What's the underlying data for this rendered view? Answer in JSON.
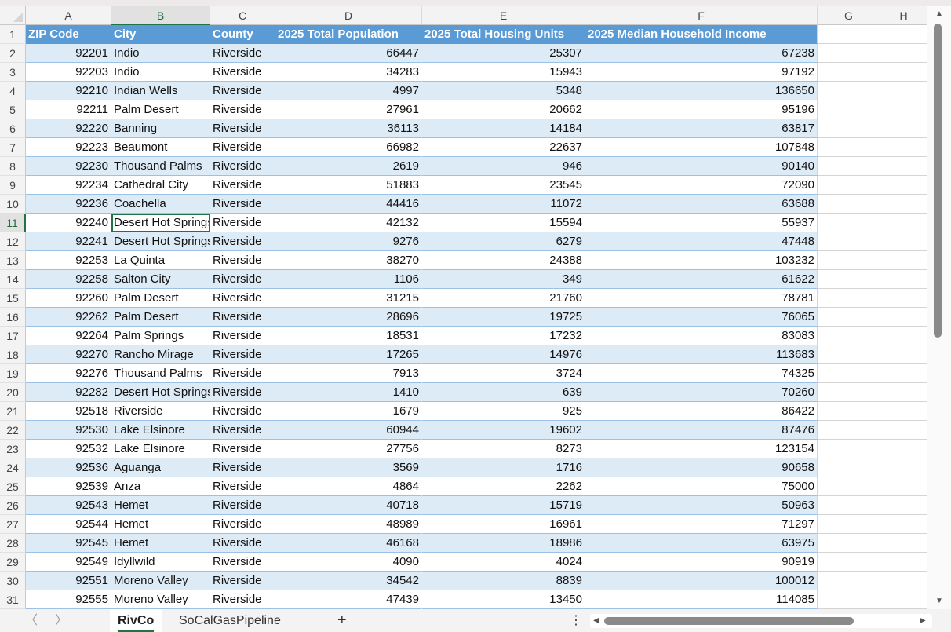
{
  "columns": [
    "A",
    "B",
    "C",
    "D",
    "E",
    "F",
    "G",
    "H"
  ],
  "selected_column": "B",
  "selected_row": 11,
  "headers": [
    "ZIP Code",
    "City",
    "County",
    "2025 Total Population",
    "2025 Total Housing Units",
    "2025 Median Household Income"
  ],
  "rows": [
    [
      "92201",
      "Indio",
      "Riverside",
      "66447",
      "25307",
      "67238"
    ],
    [
      "92203",
      "Indio",
      "Riverside",
      "34283",
      "15943",
      "97192"
    ],
    [
      "92210",
      "Indian Wells",
      "Riverside",
      "4997",
      "5348",
      "136650"
    ],
    [
      "92211",
      "Palm Desert",
      "Riverside",
      "27961",
      "20662",
      "95196"
    ],
    [
      "92220",
      "Banning",
      "Riverside",
      "36113",
      "14184",
      "63817"
    ],
    [
      "92223",
      "Beaumont",
      "Riverside",
      "66982",
      "22637",
      "107848"
    ],
    [
      "92230",
      "Thousand Palms",
      "Riverside",
      "2619",
      "946",
      "90140"
    ],
    [
      "92234",
      "Cathedral City",
      "Riverside",
      "51883",
      "23545",
      "72090"
    ],
    [
      "92236",
      "Coachella",
      "Riverside",
      "44416",
      "11072",
      "63688"
    ],
    [
      "92240",
      "Desert Hot Springs",
      "Riverside",
      "42132",
      "15594",
      "55937"
    ],
    [
      "92241",
      "Desert Hot Springs",
      "Riverside",
      "9276",
      "6279",
      "47448"
    ],
    [
      "92253",
      "La Quinta",
      "Riverside",
      "38270",
      "24388",
      "103232"
    ],
    [
      "92258",
      "Salton City",
      "Riverside",
      "1106",
      "349",
      "61622"
    ],
    [
      "92260",
      "Palm Desert",
      "Riverside",
      "31215",
      "21760",
      "78781"
    ],
    [
      "92262",
      "Palm Desert",
      "Riverside",
      "28696",
      "19725",
      "76065"
    ],
    [
      "92264",
      "Palm Springs",
      "Riverside",
      "18531",
      "17232",
      "83083"
    ],
    [
      "92270",
      "Rancho Mirage",
      "Riverside",
      "17265",
      "14976",
      "113683"
    ],
    [
      "92276",
      "Thousand Palms",
      "Riverside",
      "7913",
      "3724",
      "74325"
    ],
    [
      "92282",
      "Desert Hot Springs",
      "Riverside",
      "1410",
      "639",
      "70260"
    ],
    [
      "92518",
      "Riverside",
      "Riverside",
      "1679",
      "925",
      "86422"
    ],
    [
      "92530",
      "Lake Elsinore",
      "Riverside",
      "60944",
      "19602",
      "87476"
    ],
    [
      "92532",
      "Lake Elsinore",
      "Riverside",
      "27756",
      "8273",
      "123154"
    ],
    [
      "92536",
      "Aguanga",
      "Riverside",
      "3569",
      "1716",
      "90658"
    ],
    [
      "92539",
      "Anza",
      "Riverside",
      "4864",
      "2262",
      "75000"
    ],
    [
      "92543",
      "Hemet",
      "Riverside",
      "40718",
      "15719",
      "50963"
    ],
    [
      "92544",
      "Hemet",
      "Riverside",
      "48989",
      "16961",
      "71297"
    ],
    [
      "92545",
      "Hemet",
      "Riverside",
      "46168",
      "18986",
      "63975"
    ],
    [
      "92549",
      "Idyllwild",
      "Riverside",
      "4090",
      "4024",
      "90919"
    ],
    [
      "92551",
      "Moreno Valley",
      "Riverside",
      "34542",
      "8839",
      "100012"
    ],
    [
      "92555",
      "Moreno Valley",
      "Riverside",
      "47439",
      "13450",
      "114085"
    ]
  ],
  "sheet_tabs": [
    {
      "label": "RivCo",
      "active": true
    },
    {
      "label": "SoCalGasPipeline",
      "active": false
    }
  ],
  "add_sheet_label": "+",
  "nav_prev": "〈",
  "nav_next": "〉",
  "more_label": "⋮",
  "table_colors": {
    "header": "#5b9bd5",
    "band": "#ddebf7",
    "accent": "#217346"
  }
}
